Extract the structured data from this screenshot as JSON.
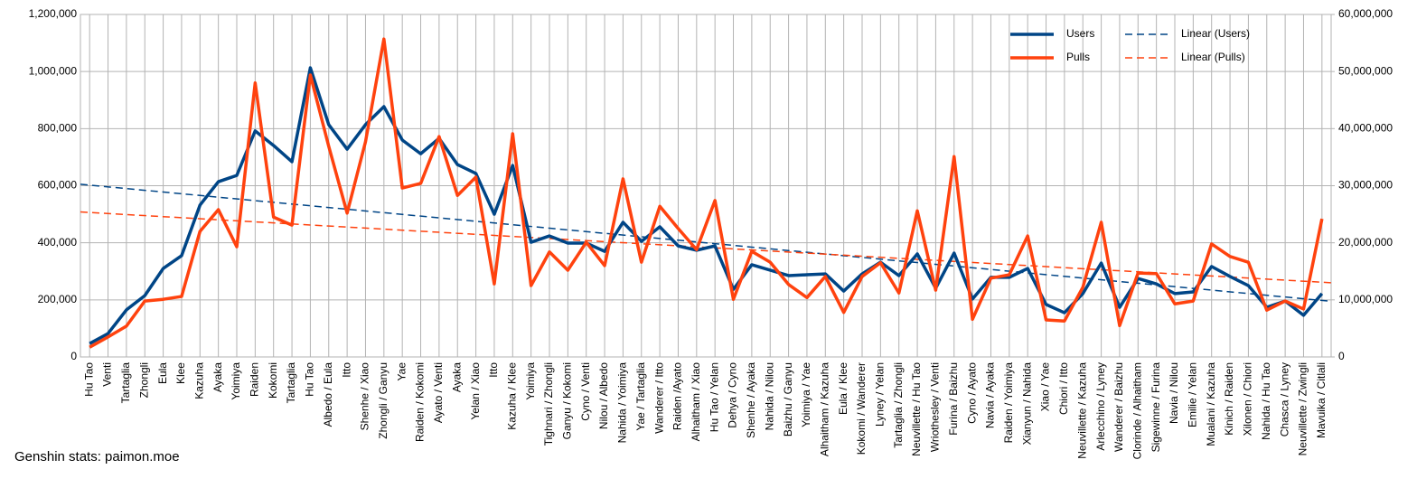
{
  "chart_data": {
    "type": "line",
    "caption": "Genshin stats: paimon.moe",
    "categories": [
      "Hu Tao",
      "Venti",
      "Tartaglia",
      "Zhongli",
      "Eula",
      "Klee",
      "Kazuha",
      "Ayaka",
      "Yoimiya",
      "Raiden",
      "Kokomi",
      "Tartaglia",
      "Hu Tao",
      "Albedo / Eula",
      "Itto",
      "Shenhe / Xiao",
      "Zhongli / Ganyu",
      "Yae",
      "Raiden / Kokomi",
      "Ayato / Venti",
      "Ayaka",
      "Yelan / Xiao",
      "Itto",
      "Kazuha / Klee",
      "Yoimiya",
      "Tighnari / Zhongli",
      "Ganyu / Kokomi",
      "Cyno / Venti",
      "Nilou / Albedo",
      "Nahida / Yoimiya",
      "Yae / Tartaglia",
      "Wanderer / Itto",
      "Raiden /Ayato",
      "Alhaitham / Xiao",
      "Hu Tao / Yelan",
      "Dehya / Cyno",
      "Shenhe / Ayaka",
      "Nahida / Nilou",
      "Baizhu / Ganyu",
      "Yoimiya / Yae",
      "Alhaitham / Kazuha",
      "Eula / Klee",
      "Kokomi / Wanderer",
      "Lyney / Yelan",
      "Tartaglia / Zhongli",
      "Neuvillette / Hu Tao",
      "Wriothesley / Venti",
      "Furina / Baizhu",
      "Cyno / Ayato",
      "Navia / Ayaka",
      "Raiden / Yoimiya",
      "Xianyun / Nahida",
      "Xiao / Yae",
      "Chiori / Itto",
      "Neuvillette / Kazuha",
      "Arlecchino / Lyney",
      "Wanderer / Baizhu",
      "Clorinde / Alhaitham",
      "Sigewinne / Furina",
      "Navia / Nilou",
      "Emilie / Yelan",
      "Mualani / Kazuha",
      "Kinich / Raiden",
      "Xilonen / Chiori",
      "Nahida / Hu Tao",
      "Chasca / Lyney",
      "Neuvillette / Zwingli",
      "Mavuika / Citlali"
    ],
    "series": [
      {
        "name": "Users",
        "color": "#004586",
        "axis": "y",
        "values": [
          47000,
          82000,
          165000,
          215000,
          310000,
          355000,
          532000,
          614000,
          636000,
          792000,
          741000,
          684000,
          1013000,
          814000,
          728000,
          814000,
          877000,
          760000,
          712000,
          766000,
          674000,
          643000,
          500000,
          671000,
          402000,
          424000,
          399000,
          399000,
          370000,
          472000,
          405000,
          456000,
          389000,
          374000,
          389000,
          237000,
          323000,
          304000,
          285000,
          288000,
          291000,
          231000,
          291000,
          332000,
          285000,
          361000,
          241000,
          364000,
          203000,
          279000,
          279000,
          310000,
          184000,
          155000,
          222000,
          329000,
          174000,
          275000,
          256000,
          222000,
          228000,
          317000,
          282000,
          250000,
          174000,
          196000,
          146000,
          222000
        ]
      },
      {
        "name": "Pulls",
        "color": "#ff420e",
        "axis": "y2",
        "values": [
          1700000,
          3500000,
          5400000,
          9800000,
          10100000,
          10600000,
          22000000,
          25800000,
          19300000,
          48000000,
          24500000,
          23100000,
          49400000,
          36900000,
          25200000,
          37700000,
          55700000,
          29600000,
          30400000,
          38600000,
          28300000,
          31500000,
          12800000,
          39100000,
          12500000,
          18400000,
          15200000,
          20100000,
          16000000,
          31200000,
          16600000,
          26400000,
          22500000,
          18800000,
          27400000,
          10100000,
          18500000,
          16600000,
          12700000,
          10400000,
          14100000,
          7800000,
          14100000,
          16500000,
          11200000,
          25600000,
          11700000,
          35100000,
          6600000,
          13800000,
          14400000,
          21200000,
          6500000,
          6300000,
          12200000,
          23600000,
          5500000,
          14700000,
          14600000,
          9300000,
          9800000,
          19800000,
          17600000,
          16600000,
          8200000,
          9800000,
          8400000,
          24200000
        ]
      }
    ],
    "trendlines": [
      {
        "name": "Linear (Users)",
        "color": "#004586",
        "axis": "y",
        "values": [
          605000,
          195000
        ]
      },
      {
        "name": "Linear (Pulls)",
        "color": "#ff420e",
        "axis": "y2",
        "values": [
          25400000,
          13000000
        ]
      }
    ],
    "ylim": [
      0,
      1200000
    ],
    "yticks": [
      0,
      {
        "value": 200000,
        "label": "200,000"
      },
      {
        "value": 400000,
        "label": "400,000"
      },
      {
        "value": 600000,
        "label": "600,000"
      },
      {
        "value": 800000,
        "label": "800,000"
      },
      {
        "value": 1000000,
        "label": "1,000,000"
      },
      {
        "value": 1200000,
        "label": "1,200,000"
      }
    ],
    "y2lim": [
      0,
      60000000
    ],
    "y2ticks": [
      0,
      {
        "value": 10000000,
        "label": "10,000,000"
      },
      {
        "value": 20000000,
        "label": "20,000,000"
      },
      {
        "value": 30000000,
        "label": "30,000,000"
      },
      {
        "value": 40000000,
        "label": "40,000,000"
      },
      {
        "value": 50000000,
        "label": "50,000,000"
      },
      {
        "value": 60000000,
        "label": "60,000,000"
      }
    ],
    "grid": true,
    "legend": "top-right"
  }
}
